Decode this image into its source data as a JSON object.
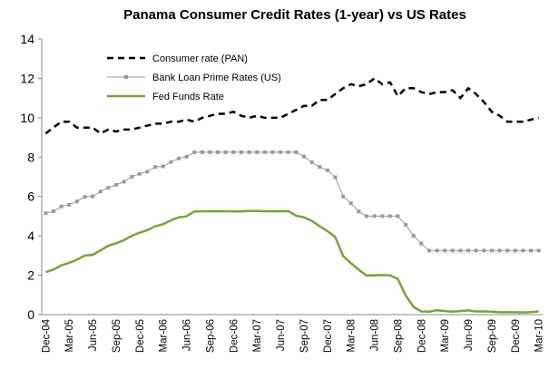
{
  "chart_data": {
    "type": "line",
    "title": "Panama Consumer Credit Rates (1-year) vs US Rates",
    "categories": [
      "Dec-04",
      null,
      null,
      "Mar-05",
      null,
      null,
      "Jun-05",
      null,
      null,
      "Sep-05",
      null,
      null,
      "Dec-05",
      null,
      null,
      "Mar-06",
      null,
      null,
      "Jun-06",
      null,
      null,
      "Sep-06",
      null,
      null,
      "Dec-06",
      null,
      null,
      "Mar-07",
      null,
      null,
      "Jun-07",
      null,
      null,
      "Sep-07",
      null,
      null,
      "Dec-07",
      null,
      null,
      "Mar-08",
      null,
      null,
      "Jun-08",
      null,
      null,
      "Sep-08",
      null,
      null,
      "Dec-08",
      null,
      null,
      "Mar-09",
      null,
      null,
      "Jun-09",
      null,
      null,
      "Sep-09",
      null,
      null,
      "Dec-09",
      null,
      null,
      "Mar-10"
    ],
    "series": [
      {
        "name": "Consumer rate (PAN)",
        "color": "#000000",
        "line_style": "dashed",
        "marker": "none",
        "values": [
          9.2,
          9.5,
          9.8,
          9.8,
          9.5,
          9.5,
          9.5,
          9.2,
          9.4,
          9.3,
          9.4,
          9.4,
          9.5,
          9.6,
          9.7,
          9.7,
          9.8,
          9.8,
          9.9,
          9.8,
          10.0,
          10.1,
          10.2,
          10.2,
          10.3,
          10.1,
          10.0,
          10.1,
          10.0,
          10.0,
          10.0,
          10.2,
          10.4,
          10.6,
          10.6,
          10.9,
          10.9,
          11.2,
          11.5,
          11.7,
          11.6,
          11.7,
          12.0,
          11.7,
          11.8,
          11.1,
          11.5,
          11.5,
          11.3,
          11.2,
          11.3,
          11.3,
          11.4,
          11.0,
          11.5,
          11.2,
          10.8,
          10.3,
          10.1,
          9.8,
          9.8,
          9.8,
          9.9,
          10.0
        ]
      },
      {
        "name": "Bank Loan Prime Rates (US)",
        "color": "#9a9a9a",
        "line_style": "solid",
        "marker": "square",
        "values": [
          5.15,
          5.25,
          5.49,
          5.58,
          5.75,
          5.98,
          6.01,
          6.25,
          6.44,
          6.59,
          6.75,
          7.0,
          7.15,
          7.26,
          7.5,
          7.53,
          7.75,
          7.93,
          8.02,
          8.25,
          8.25,
          8.25,
          8.25,
          8.25,
          8.25,
          8.25,
          8.25,
          8.25,
          8.25,
          8.25,
          8.25,
          8.25,
          8.25,
          8.03,
          7.74,
          7.5,
          7.33,
          6.98,
          6.0,
          5.66,
          5.24,
          5.0,
          5.0,
          5.0,
          5.0,
          5.0,
          4.56,
          4.0,
          3.61,
          3.25,
          3.25,
          3.25,
          3.25,
          3.25,
          3.25,
          3.25,
          3.25,
          3.25,
          3.25,
          3.25,
          3.25,
          3.25,
          3.25,
          3.25
        ]
      },
      {
        "name": "Fed Funds Rate",
        "color": "#77a33a",
        "line_style": "solid",
        "marker": "none",
        "values": [
          2.16,
          2.28,
          2.5,
          2.63,
          2.79,
          3.0,
          3.04,
          3.26,
          3.5,
          3.62,
          3.78,
          4.0,
          4.16,
          4.29,
          4.49,
          4.59,
          4.79,
          4.94,
          4.99,
          5.24,
          5.25,
          5.25,
          5.25,
          5.25,
          5.24,
          5.25,
          5.26,
          5.26,
          5.25,
          5.25,
          5.25,
          5.26,
          5.02,
          4.94,
          4.76,
          4.49,
          4.24,
          3.94,
          2.98,
          2.61,
          2.28,
          1.98,
          2.0,
          2.01,
          2.0,
          1.81,
          0.97,
          0.39,
          0.16,
          0.15,
          0.22,
          0.18,
          0.15,
          0.18,
          0.21,
          0.16,
          0.16,
          0.15,
          0.12,
          0.12,
          0.12,
          0.11,
          0.13,
          0.16
        ]
      }
    ],
    "ylim": [
      0,
      14
    ],
    "yticks": [
      0,
      2,
      4,
      6,
      8,
      10,
      12,
      14
    ],
    "grid": false,
    "legend": "top-left"
  }
}
